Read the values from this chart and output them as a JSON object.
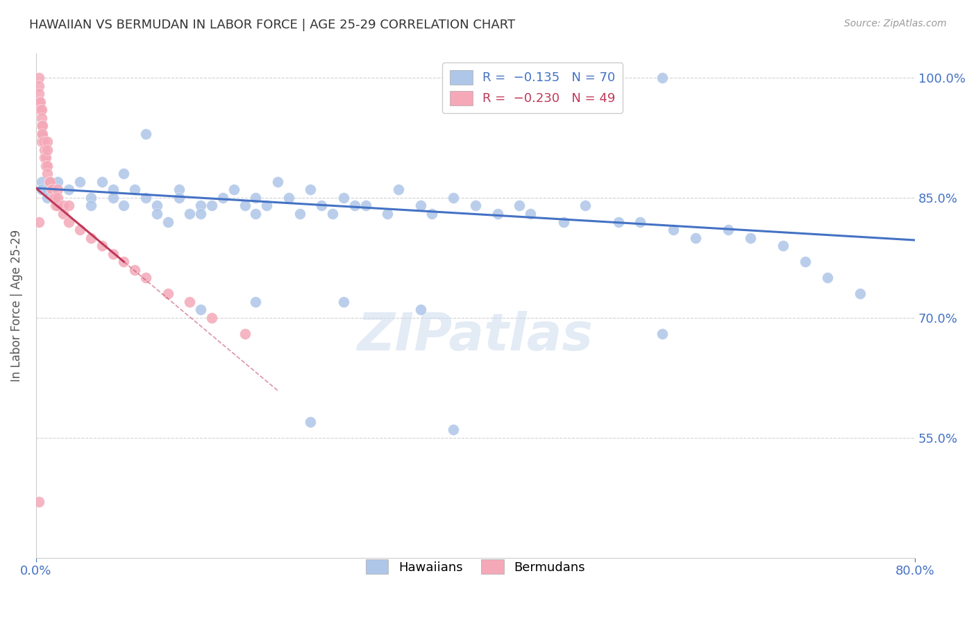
{
  "title": "HAWAIIAN VS BERMUDAN IN LABOR FORCE | AGE 25-29 CORRELATION CHART",
  "source": "Source: ZipAtlas.com",
  "ylabel": "In Labor Force | Age 25-29",
  "xmin": 0.0,
  "xmax": 0.8,
  "ymin": 0.4,
  "ymax": 1.03,
  "ytick_vals": [
    1.0,
    0.85,
    0.7,
    0.55
  ],
  "ytick_labels": [
    "100.0%",
    "85.0%",
    "70.0%",
    "55.0%"
  ],
  "xtick_vals": [
    0.0,
    0.8
  ],
  "xtick_labels": [
    "0.0%",
    "80.0%"
  ],
  "hawaiians_color": "#aec6e8",
  "bermudans_color": "#f4a8b8",
  "trend_hawaiians_color": "#4472c4",
  "trend_bermudans_color": "#c0395a",
  "background_color": "#ffffff",
  "grid_color": "#d0d0d8",
  "title_color": "#333333",
  "axis_label_color": "#555555",
  "tick_label_color": "#4472c4",
  "source_color": "#999999",
  "hawaiian_trend_x0": 0.0,
  "hawaiian_trend_y0": 0.862,
  "hawaiian_trend_x1": 0.8,
  "hawaiian_trend_y1": 0.797,
  "bermudan_trend_x0": 0.0,
  "bermudan_trend_y0": 0.862,
  "bermudan_trend_x1_solid": 0.08,
  "bermudan_trend_y1_solid": 0.77,
  "bermudan_trend_x1_dash": 0.22,
  "bermudan_trend_y1_dash": 0.6,
  "hawaiians_x": [
    0.005,
    0.005,
    0.01,
    0.01,
    0.02,
    0.03,
    0.04,
    0.05,
    0.05,
    0.06,
    0.07,
    0.07,
    0.08,
    0.08,
    0.09,
    0.1,
    0.1,
    0.11,
    0.11,
    0.12,
    0.13,
    0.13,
    0.14,
    0.15,
    0.15,
    0.16,
    0.17,
    0.18,
    0.19,
    0.2,
    0.2,
    0.21,
    0.22,
    0.23,
    0.24,
    0.25,
    0.26,
    0.27,
    0.28,
    0.29,
    0.3,
    0.32,
    0.33,
    0.35,
    0.36,
    0.38,
    0.4,
    0.42,
    0.44,
    0.45,
    0.48,
    0.5,
    0.53,
    0.55,
    0.58,
    0.6,
    0.63,
    0.65,
    0.68,
    0.7,
    0.72,
    0.75,
    0.28,
    0.35,
    0.2,
    0.15,
    0.57,
    0.38,
    0.25,
    0.57
  ],
  "hawaiians_y": [
    0.87,
    0.86,
    0.86,
    0.85,
    0.87,
    0.86,
    0.87,
    0.85,
    0.84,
    0.87,
    0.86,
    0.85,
    0.88,
    0.84,
    0.86,
    0.93,
    0.85,
    0.84,
    0.83,
    0.82,
    0.86,
    0.85,
    0.83,
    0.84,
    0.83,
    0.84,
    0.85,
    0.86,
    0.84,
    0.85,
    0.83,
    0.84,
    0.87,
    0.85,
    0.83,
    0.86,
    0.84,
    0.83,
    0.85,
    0.84,
    0.84,
    0.83,
    0.86,
    0.84,
    0.83,
    0.85,
    0.84,
    0.83,
    0.84,
    0.83,
    0.82,
    0.84,
    0.82,
    0.82,
    0.81,
    0.8,
    0.81,
    0.8,
    0.79,
    0.77,
    0.75,
    0.73,
    0.72,
    0.71,
    0.72,
    0.71,
    0.68,
    0.56,
    0.57,
    1.0
  ],
  "bermudans_x": [
    0.003,
    0.003,
    0.003,
    0.003,
    0.004,
    0.004,
    0.005,
    0.005,
    0.005,
    0.005,
    0.005,
    0.006,
    0.006,
    0.007,
    0.008,
    0.008,
    0.009,
    0.009,
    0.01,
    0.01,
    0.01,
    0.01,
    0.012,
    0.013,
    0.014,
    0.015,
    0.016,
    0.017,
    0.018,
    0.019,
    0.02,
    0.02,
    0.025,
    0.025,
    0.03,
    0.03,
    0.04,
    0.05,
    0.06,
    0.07,
    0.08,
    0.09,
    0.1,
    0.12,
    0.14,
    0.16,
    0.19,
    0.003,
    0.003
  ],
  "bermudans_y": [
    1.0,
    0.99,
    0.98,
    0.97,
    0.97,
    0.96,
    0.96,
    0.95,
    0.94,
    0.93,
    0.92,
    0.94,
    0.93,
    0.92,
    0.91,
    0.9,
    0.9,
    0.89,
    0.92,
    0.91,
    0.89,
    0.88,
    0.87,
    0.87,
    0.86,
    0.86,
    0.85,
    0.85,
    0.84,
    0.84,
    0.86,
    0.85,
    0.84,
    0.83,
    0.84,
    0.82,
    0.81,
    0.8,
    0.79,
    0.78,
    0.77,
    0.76,
    0.75,
    0.73,
    0.72,
    0.7,
    0.68,
    0.47,
    0.82
  ]
}
